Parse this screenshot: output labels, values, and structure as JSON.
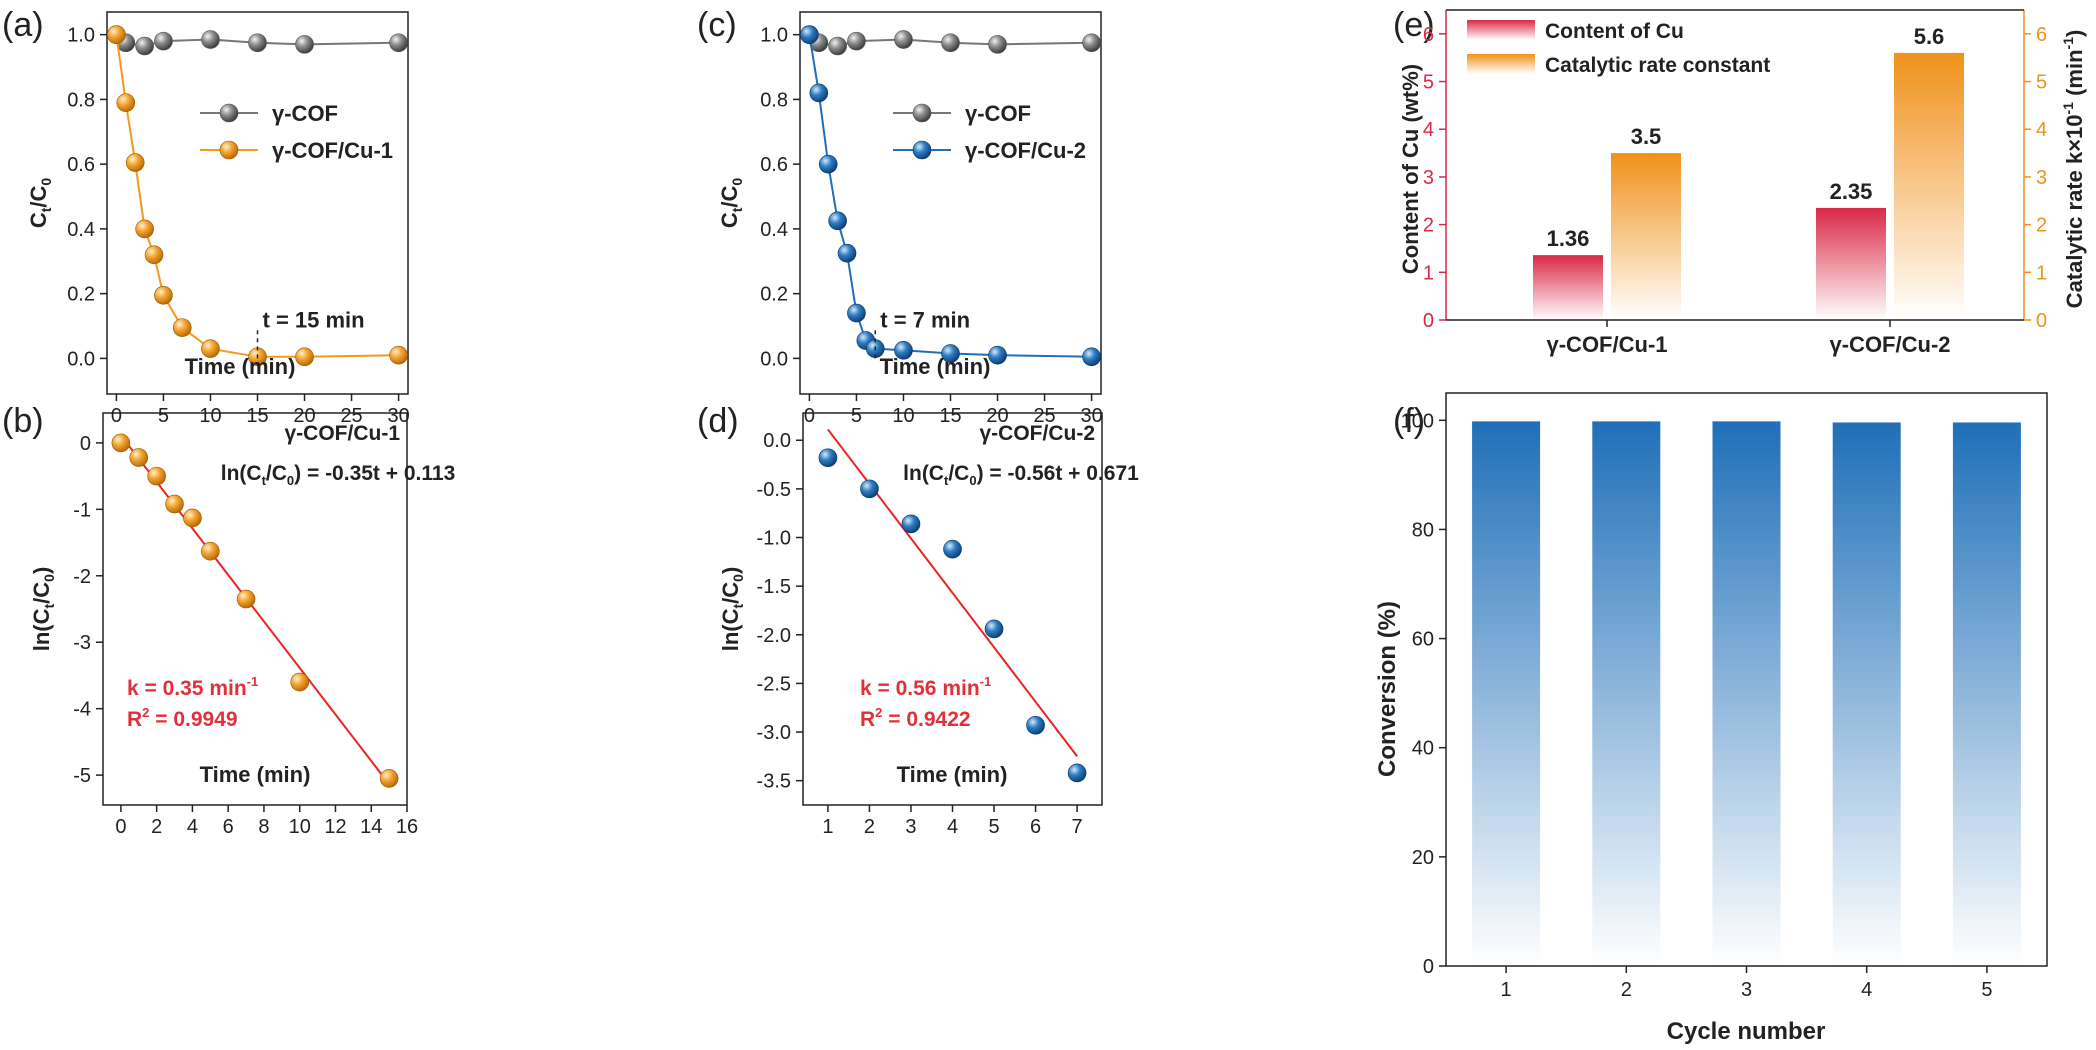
{
  "panels": [
    {
      "letter": "(a)",
      "chart_data": {
        "type": "line",
        "xlabel": "Time (min)",
        "ylabel": "Ct/C0",
        "xlim": [
          -1,
          31
        ],
        "ylim": [
          -0.11,
          1.07
        ],
        "xticks": [
          0,
          5,
          10,
          15,
          20,
          25,
          30
        ],
        "yticks": [
          0.0,
          0.2,
          0.4,
          0.6,
          0.8,
          1.0
        ],
        "series": [
          {
            "name": "γ-COF",
            "color": "#777777",
            "x": [
              0,
              1,
              3,
              5,
              10,
              15,
              20,
              30
            ],
            "y": [
              1.0,
              0.975,
              0.965,
              0.98,
              0.985,
              0.975,
              0.97,
              0.975
            ]
          },
          {
            "name": "γ-COF/Cu-1",
            "color": "#f39a1e",
            "x": [
              0,
              1,
              2,
              3,
              4,
              5,
              7,
              10,
              15,
              20,
              30
            ],
            "y": [
              1.0,
              0.79,
              0.605,
              0.4,
              0.32,
              0.195,
              0.095,
              0.03,
              0.005,
              0.005,
              0.01
            ]
          }
        ],
        "annotation": {
          "text": "t = 15 min",
          "x": 15
        }
      }
    },
    {
      "letter": "(c)",
      "chart_data": {
        "type": "line",
        "xlabel": "Time (min)",
        "ylabel": "Ct/C0",
        "xlim": [
          -1,
          31
        ],
        "ylim": [
          -0.11,
          1.07
        ],
        "xticks": [
          0,
          5,
          10,
          15,
          20,
          25,
          30
        ],
        "yticks": [
          0.0,
          0.2,
          0.4,
          0.6,
          0.8,
          1.0
        ],
        "series": [
          {
            "name": "γ-COF",
            "color": "#777777",
            "x": [
              0,
              1,
              3,
              5,
              10,
              15,
              20,
              30
            ],
            "y": [
              1.0,
              0.975,
              0.965,
              0.98,
              0.985,
              0.975,
              0.97,
              0.975
            ]
          },
          {
            "name": "γ-COF/Cu-2",
            "color": "#1f6fb8",
            "x": [
              0,
              1,
              2,
              3,
              4,
              5,
              6,
              7,
              10,
              15,
              20,
              30
            ],
            "y": [
              1.0,
              0.82,
              0.6,
              0.425,
              0.325,
              0.14,
              0.055,
              0.03,
              0.025,
              0.015,
              0.01,
              0.005
            ]
          }
        ],
        "annotation": {
          "text": "t = 7 min",
          "x": 7
        }
      }
    },
    {
      "letter": "(b)",
      "chart_data": {
        "type": "scatter",
        "title": "γ-COF/Cu-1",
        "xlabel": "Time (min)",
        "ylabel": "ln(Ct/C0)",
        "xlim": [
          -1,
          16
        ],
        "ylim": [
          -5.45,
          0.45
        ],
        "xticks": [
          0,
          2,
          4,
          6,
          8,
          10,
          12,
          14,
          16
        ],
        "yticks": [
          0,
          -1,
          -2,
          -3,
          -4,
          -5
        ],
        "points": {
          "color": "#f39a1e",
          "x": [
            0,
            1,
            2,
            3,
            4,
            5,
            7,
            10,
            15
          ],
          "y": [
            0,
            -0.22,
            -0.5,
            -0.92,
            -1.13,
            -1.63,
            -2.35,
            -3.6,
            -5.05
          ]
        },
        "fit": {
          "color": "#ee2222",
          "slope": -0.35,
          "intercept": 0.113,
          "x": [
            0,
            15
          ]
        },
        "equation": "ln(Ct/C0) = -0.35t + 0.113",
        "k_text": "k = 0.35 min-1",
        "r2_text": "R2 = 0.9949"
      }
    },
    {
      "letter": "(d)",
      "chart_data": {
        "type": "scatter",
        "title": "γ-COF/Cu-2",
        "xlabel": "Time (min)",
        "ylabel": "ln(Ct/C0)",
        "xlim": [
          0.4,
          7.6
        ],
        "ylim": [
          -3.75,
          0.28
        ],
        "xticks": [
          1,
          2,
          3,
          4,
          5,
          6,
          7
        ],
        "yticks": [
          0.0,
          -0.5,
          -1.0,
          -1.5,
          -2.0,
          -2.5,
          -3.0,
          -3.5
        ],
        "points": {
          "color": "#1f6fb8",
          "x": [
            1,
            2,
            3,
            4,
            5,
            6,
            7
          ],
          "y": [
            -0.18,
            -0.5,
            -0.86,
            -1.12,
            -1.94,
            -2.93,
            -3.42
          ]
        },
        "fit": {
          "color": "#ee2222",
          "slope": -0.56,
          "intercept": 0.671,
          "x": [
            1,
            7
          ]
        },
        "equation": "ln(Ct/C0) = -0.56t + 0.671",
        "k_text": "k = 0.56 min-1",
        "r2_text": "R2 = 0.9422"
      }
    },
    {
      "letter": "(e)",
      "chart_data": {
        "type": "bar",
        "categories": [
          "γ-COF/Cu-1",
          "γ-COF/Cu-2"
        ],
        "ylabel": "Content of Cu (wt%)",
        "y2label": "Catalytic rate k×10-1 (min-1)",
        "ylim": [
          0,
          6.5
        ],
        "y2lim": [
          0,
          6.5
        ],
        "yticks": [
          0,
          1,
          2,
          3,
          4,
          5,
          6
        ],
        "series": [
          {
            "name": "Content of Cu",
            "axis": "left",
            "color": "#d92945",
            "values": [
              1.36,
              2.35
            ],
            "labels": [
              "1.36",
              "2.35"
            ]
          },
          {
            "name": "Catalytic rate constant",
            "axis": "right",
            "color": "#f39a1e",
            "values": [
              3.5,
              5.6
            ],
            "labels": [
              "3.5",
              "5.6"
            ]
          }
        ],
        "legend": "top-left"
      }
    },
    {
      "letter": "(f)",
      "chart_data": {
        "type": "bar",
        "categories": [
          "1",
          "2",
          "3",
          "4",
          "5"
        ],
        "xlabel": "Cycle number",
        "ylabel": "Conversion (%)",
        "ylim": [
          0,
          105
        ],
        "yticks": [
          0,
          20,
          40,
          60,
          80,
          100
        ],
        "series": [
          {
            "color": "#1f6fb8",
            "values": [
              99.8,
              99.8,
              99.8,
              99.6,
              99.6
            ]
          }
        ]
      }
    }
  ]
}
